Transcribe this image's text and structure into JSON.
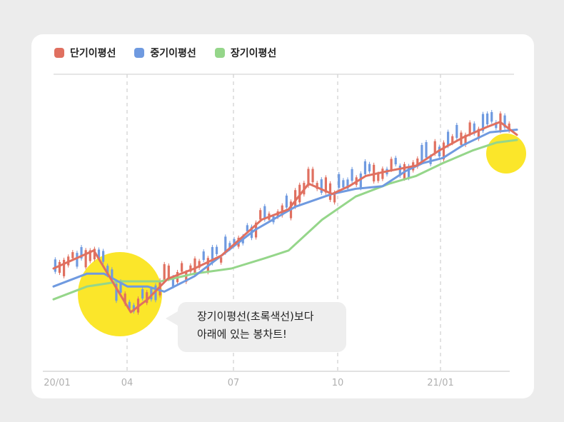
{
  "legend": [
    {
      "label": "단기이평선",
      "color": "#e07060"
    },
    {
      "label": "중기이평선",
      "color": "#6f9ae0"
    },
    {
      "label": "장기이평선",
      "color": "#95d68a"
    }
  ],
  "callout": {
    "line1": "장기이평선(초록색선)보다",
    "line2": "아래에 있는 봉차트!"
  },
  "highlight_color": "#fbe62a",
  "chart_data": {
    "type": "line",
    "title": "",
    "xlabel": "",
    "ylabel": "",
    "x_ticks": [
      "20/01",
      "04",
      "07",
      "10",
      "21/01"
    ],
    "xlim": [
      0,
      13.8
    ],
    "ylim": [
      0,
      100
    ],
    "grid": "vertical dashed at x ticks",
    "series": [
      {
        "name": "단기이평선",
        "color": "#e07060",
        "x": [
          0,
          1.2,
          2.3,
          2.8,
          3.4,
          4.2,
          5.0,
          6.2,
          7.0,
          7.6,
          8.3,
          8.8,
          9.3,
          10.0,
          10.8,
          11.5,
          12.2,
          12.9,
          13.3,
          13.8
        ],
        "y": [
          40,
          47,
          23,
          28,
          36,
          40,
          45,
          59,
          63,
          73,
          69,
          72,
          76,
          78,
          80,
          86,
          91,
          95,
          97,
          92
        ]
      },
      {
        "name": "중기이평선",
        "color": "#6f9ae0",
        "x": [
          0,
          1.0,
          1.5,
          2.2,
          2.8,
          3.3,
          4.2,
          5.0,
          6.0,
          7.2,
          8.3,
          9.0,
          9.8,
          10.5,
          11.0,
          11.6,
          12.2,
          13.0,
          13.8
        ],
        "y": [
          33,
          38,
          38,
          33,
          33,
          31,
          37,
          45,
          55,
          64,
          69,
          71,
          72,
          78,
          81,
          83,
          88,
          93,
          94
        ]
      },
      {
        "name": "장기이평선",
        "color": "#95d68a",
        "x": [
          0,
          1.0,
          2.0,
          2.5,
          3.2,
          4.2,
          5.3,
          6.3,
          7.0,
          8.0,
          9.0,
          10.0,
          10.8,
          11.6,
          12.5,
          13.2,
          13.8
        ],
        "y": [
          28,
          33,
          35,
          35,
          35,
          38,
          40,
          44,
          47,
          59,
          68,
          73,
          76,
          81,
          86,
          89,
          90
        ]
      }
    ]
  }
}
